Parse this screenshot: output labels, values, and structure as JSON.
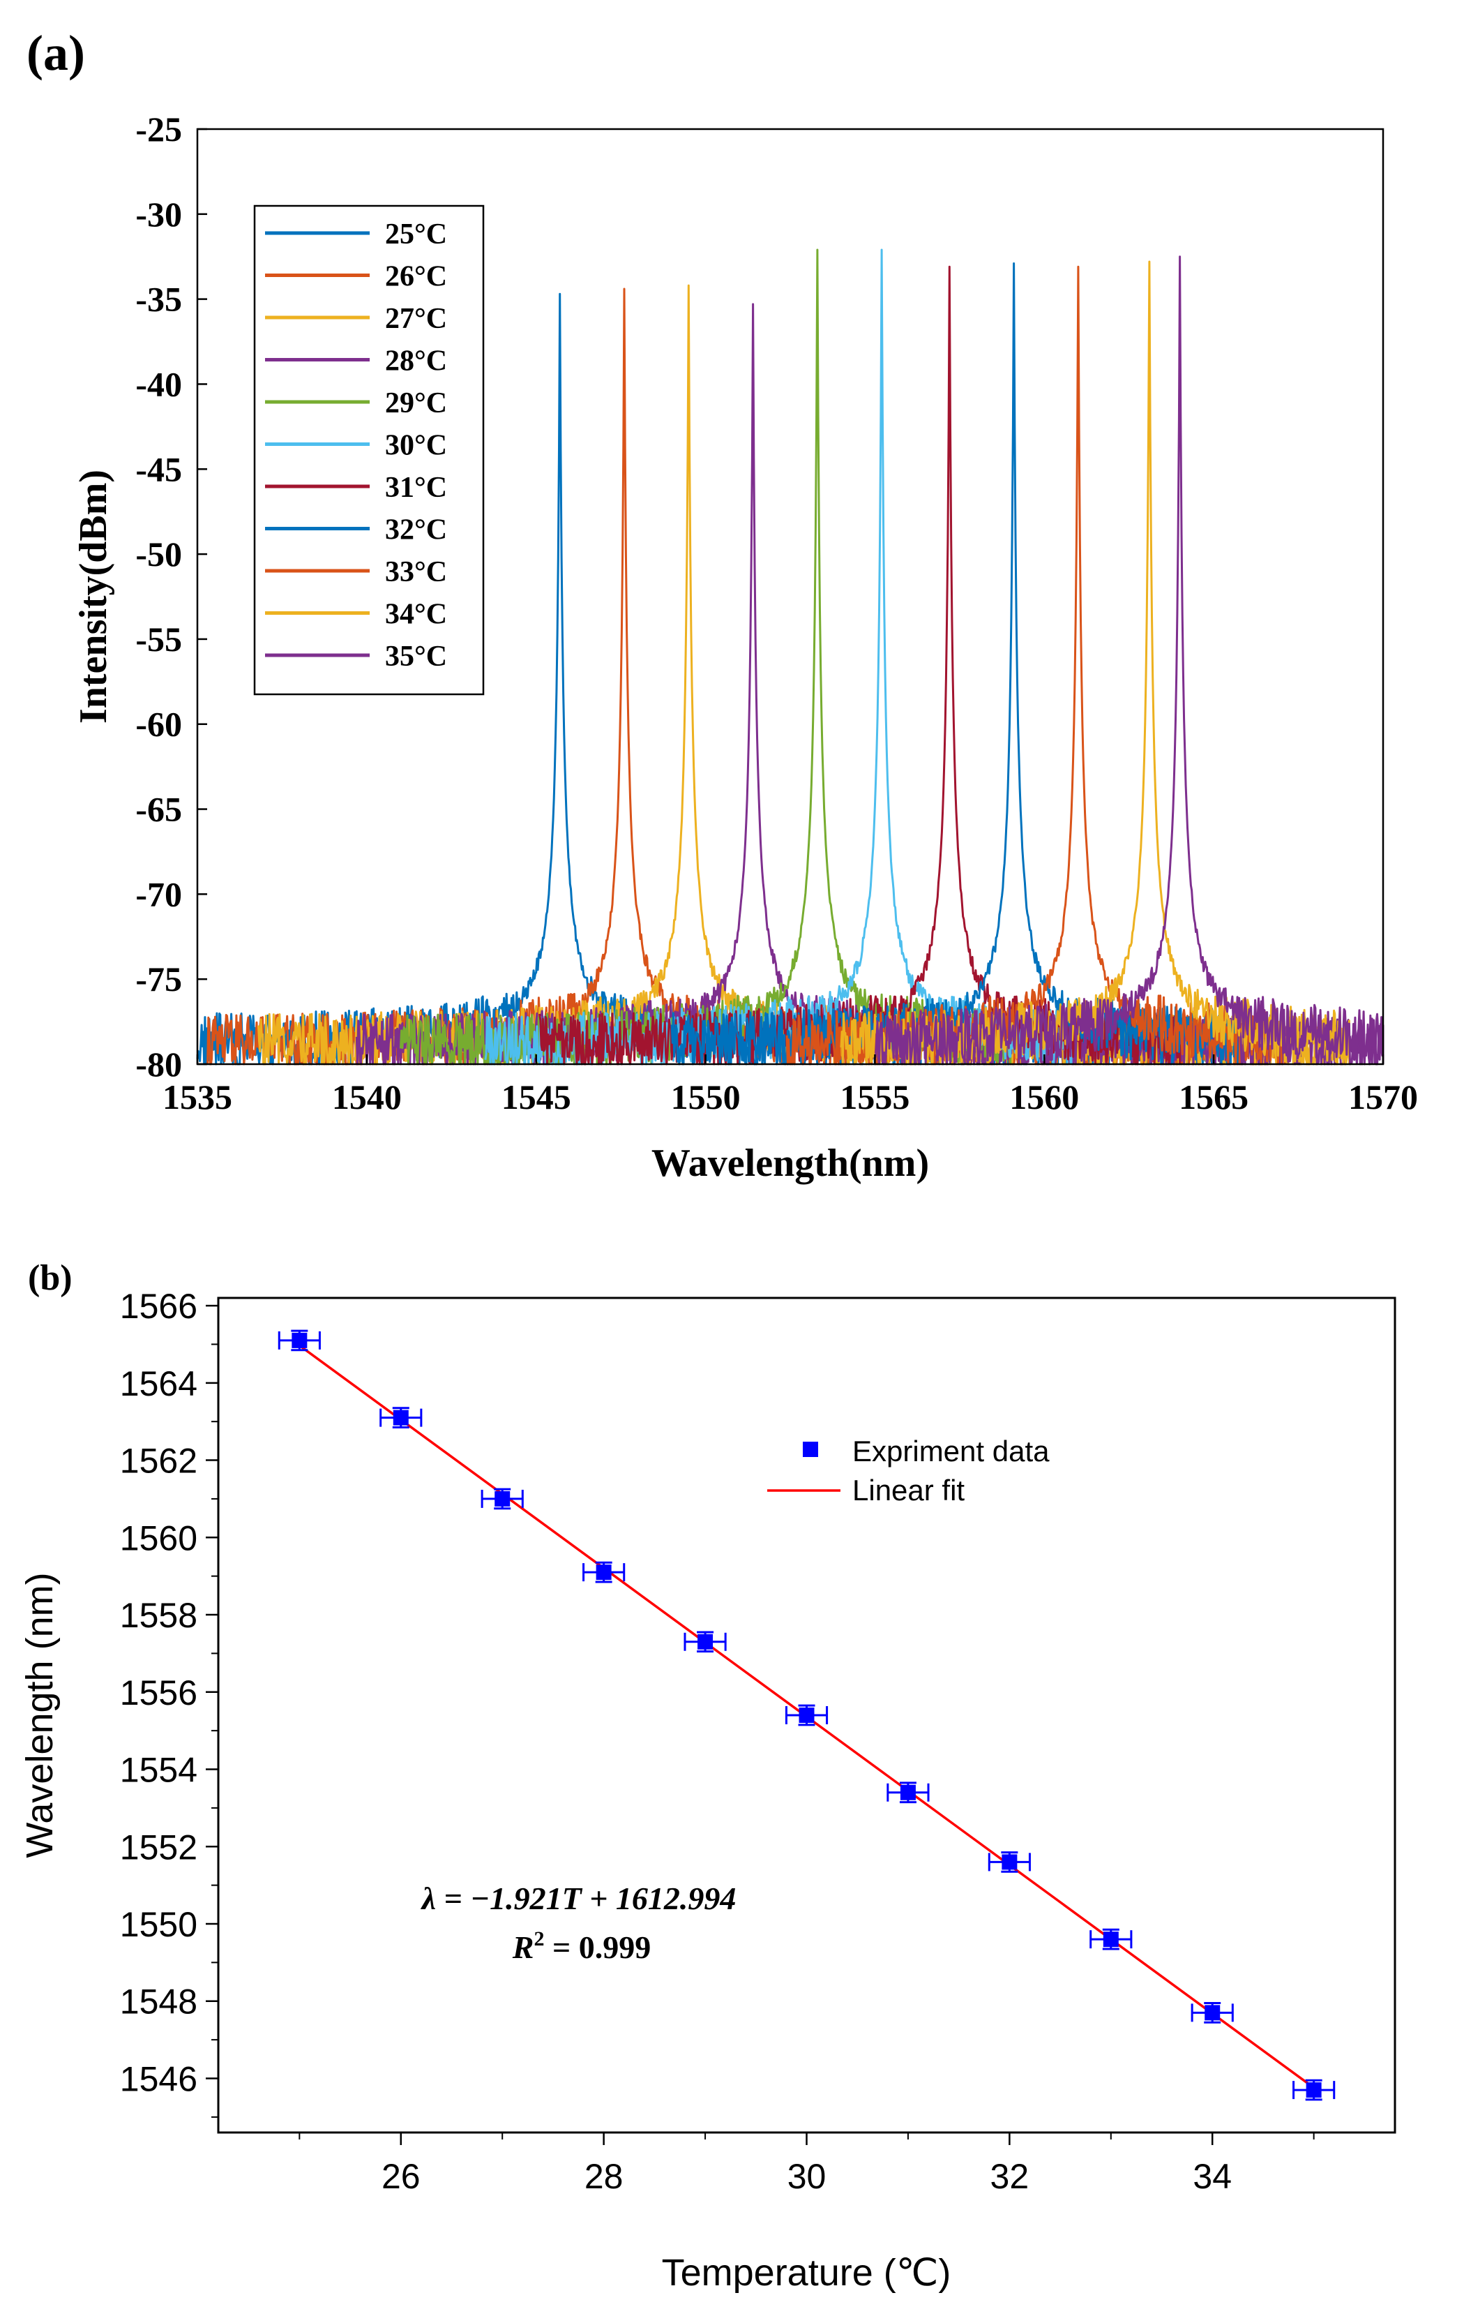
{
  "chart_data": [
    {
      "panel": "(a)",
      "type": "line",
      "xlabel": "Wavelength(nm)",
      "ylabel": "Intensity(dBm)",
      "xlim": [
        1535,
        1570
      ],
      "ylim": [
        -80,
        -25
      ],
      "xticks": [
        1535,
        1540,
        1545,
        1550,
        1555,
        1560,
        1565,
        1570
      ],
      "yticks": [
        -25,
        -30,
        -35,
        -40,
        -45,
        -50,
        -55,
        -60,
        -65,
        -70,
        -75,
        -80
      ],
      "legend_position": "top-left",
      "series": [
        {
          "name": "25°C",
          "color": "#0072BD",
          "peak_wavelength": 1545.7,
          "peak_intensity": -34.7,
          "start": 1535.0,
          "end": 1565.5
        },
        {
          "name": "26°C",
          "color": "#D95319",
          "peak_wavelength": 1547.6,
          "peak_intensity": -34.4,
          "start": 1535.3,
          "end": 1567.1
        },
        {
          "name": "27°C",
          "color": "#EDB120",
          "peak_wavelength": 1549.5,
          "peak_intensity": -34.2,
          "start": 1536.8,
          "end": 1568.9
        },
        {
          "name": "28°C",
          "color": "#7E2F8E",
          "peak_wavelength": 1551.4,
          "peak_intensity": -35.3,
          "start": 1539.7,
          "end": 1570.0
        },
        {
          "name": "29°C",
          "color": "#77AC30",
          "peak_wavelength": 1553.3,
          "peak_intensity": -32.1,
          "start": 1541.0,
          "end": 1559.0
        },
        {
          "name": "30°C",
          "color": "#4DBEEE",
          "peak_wavelength": 1555.2,
          "peak_intensity": -32.1,
          "start": 1543.5,
          "end": 1560.8
        },
        {
          "name": "31°C",
          "color": "#A2142F",
          "peak_wavelength": 1557.2,
          "peak_intensity": -33.1,
          "start": 1545.1,
          "end": 1564.0
        },
        {
          "name": "32°C",
          "color": "#0072BD",
          "peak_wavelength": 1559.1,
          "peak_intensity": -32.9,
          "start": 1549.0,
          "end": 1565.7
        },
        {
          "name": "33°C",
          "color": "#D95319",
          "peak_wavelength": 1561.0,
          "peak_intensity": -33.1,
          "start": 1552.4,
          "end": 1567.0
        },
        {
          "name": "34°C",
          "color": "#EDB120",
          "peak_wavelength": 1563.1,
          "peak_intensity": -32.8,
          "start": 1554.0,
          "end": 1569.0
        },
        {
          "name": "35°C",
          "color": "#7E2F8E",
          "peak_wavelength": 1564.0,
          "peak_intensity": -32.5,
          "start": 1555.0,
          "end": 1570.0
        }
      ]
    },
    {
      "panel": "(b)",
      "type": "scatter",
      "xlabel": "Temperature (℃)",
      "ylabel": "Wavelength (nm)",
      "xlim": [
        24.2,
        35.8
      ],
      "ylim": [
        1544.6,
        1566.2
      ],
      "xticks": [
        26,
        28,
        30,
        32,
        34
      ],
      "yticks": [
        1546,
        1548,
        1550,
        1552,
        1554,
        1556,
        1558,
        1560,
        1562,
        1564,
        1566
      ],
      "legend_position": "top-right",
      "series": [
        {
          "name": "Expriment data",
          "color": "#0000FF",
          "x": [
            25,
            26,
            27,
            28,
            29,
            30,
            31,
            32,
            33,
            34,
            35
          ],
          "y": [
            1565.1,
            1563.1,
            1561.0,
            1559.1,
            1557.3,
            1555.4,
            1553.4,
            1551.6,
            1549.6,
            1547.7,
            1545.7
          ],
          "x_error": 0.2,
          "y_error": 0.25
        },
        {
          "name": "Linear fit",
          "color": "#FF0000",
          "slope": -1.921,
          "intercept": 1612.994
        }
      ],
      "annotation": {
        "equation": "λ = −1.921T + 1612.994",
        "r_squared_prefix": "R",
        "r_squared_sup": "2",
        "r_squared_rest": " = 0.999"
      }
    }
  ]
}
